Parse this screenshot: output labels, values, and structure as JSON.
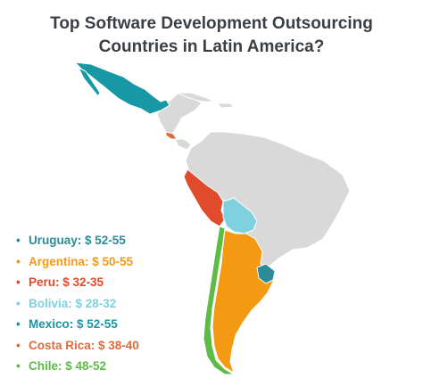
{
  "title": {
    "line1": "Top Software Development Outsourcing",
    "line2": "Countries in Latin America?"
  },
  "colors": {
    "land": "#d9d9d9",
    "border": "#ffffff",
    "uruguay": "#2c8b9a",
    "argentina": "#f39a12",
    "peru": "#e04a2d",
    "bolivia": "#7fd1df",
    "mexico": "#1798a4",
    "costa_rica": "#e06a3c",
    "chile": "#5dbb46"
  },
  "legend": [
    {
      "label": "Uruguay: $ 52-55",
      "color": "#2c8b9a"
    },
    {
      "label": "Argentina: $ 50-55",
      "color": "#f39a12"
    },
    {
      "label": "Peru: $ 32-35",
      "color": "#e04a2d"
    },
    {
      "label": "Bolivia: $ 28-32",
      "color": "#7fd1df"
    },
    {
      "label": "Mexico: $ 52-55",
      "color": "#1798a4"
    },
    {
      "label": "Costa Rica: $ 38-40",
      "color": "#e06a3c"
    },
    {
      "label": "Chile: $ 48-52",
      "color": "#5dbb46"
    }
  ]
}
